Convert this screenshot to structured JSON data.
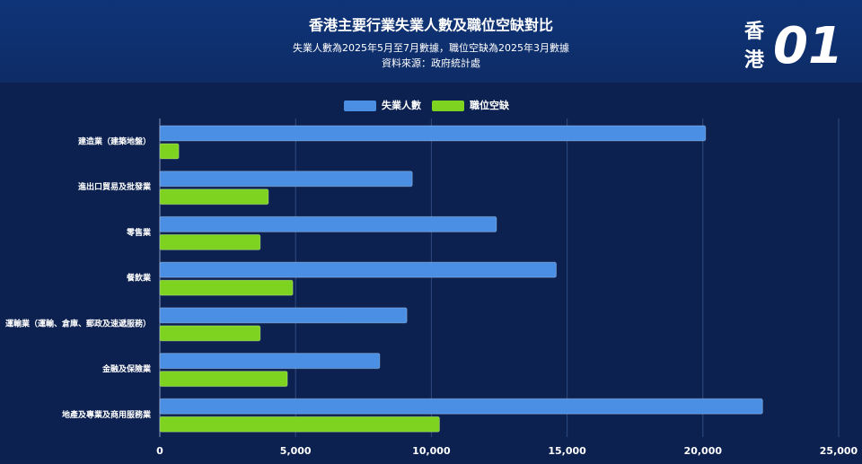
{
  "header": {
    "logo": {
      "chars": [
        "香",
        "港"
      ],
      "mark": "01"
    }
  },
  "chart_data": {
    "type": "hbar",
    "title": "香港主要行業失業人數及職位空缺對比",
    "subtitle": "失業人數為2025年5月至7月數據，職位空缺為2025年3月數據",
    "source": "資料來源：政府統計處",
    "categories": [
      "建造業（建築地盤）",
      "進出口貿易及批發業",
      "零售業",
      "餐飲業",
      "運輸業（運輸、倉庫、郵政及速遞服務）",
      "金融及保險業",
      "地產及專業及商用服務業"
    ],
    "series": [
      {
        "name": "失業人數",
        "color": "#4a8fe3",
        "values": [
          20100,
          9300,
          12400,
          14600,
          9100,
          8100,
          22200
        ]
      },
      {
        "name": "職位空缺",
        "color": "#7ed321",
        "values": [
          700,
          4000,
          3700,
          4900,
          3700,
          4700,
          10300
        ]
      }
    ],
    "xlim": [
      0,
      25000
    ],
    "xticks": [
      0,
      {
        "value": 5000,
        "label": "5,000"
      },
      {
        "value": 10000,
        "label": "10,000"
      },
      {
        "value": 15000,
        "label": "15,000"
      },
      {
        "value": 20000,
        "label": "20,000"
      },
      {
        "value": 25000,
        "label": "25,000"
      }
    ],
    "grid": true,
    "legend": "top"
  }
}
